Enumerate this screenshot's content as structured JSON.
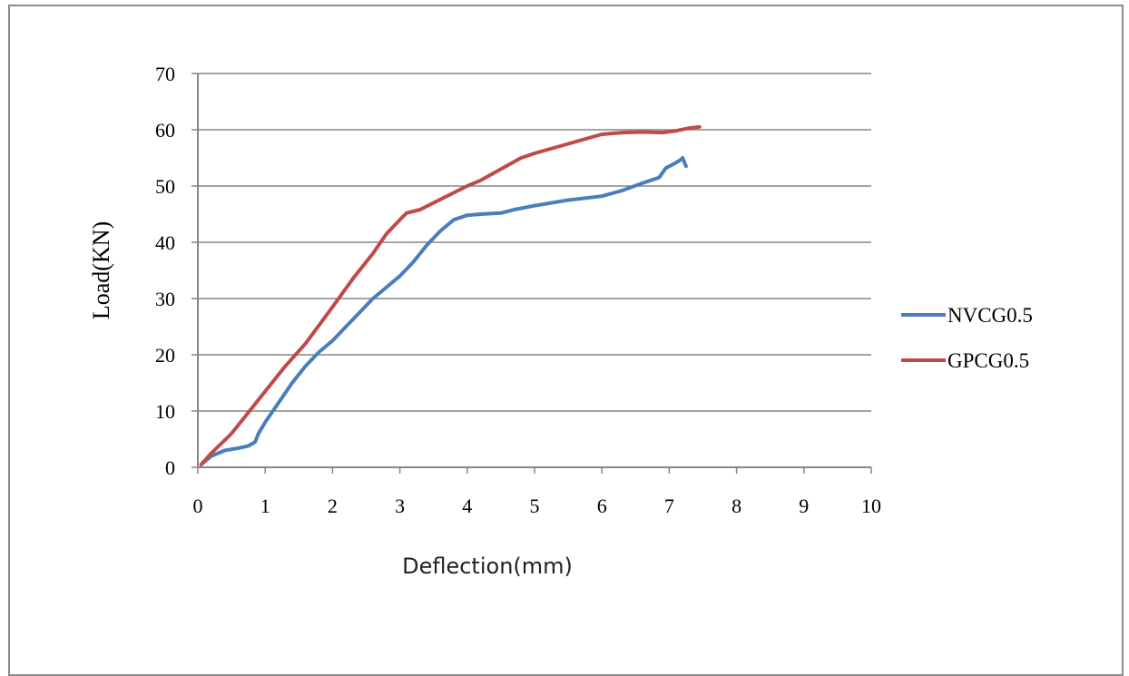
{
  "chart_data": {
    "type": "line",
    "title": "",
    "xlabel": "Deflection(mm)",
    "ylabel": "Load(KN)",
    "xlim": [
      0,
      10
    ],
    "ylim": [
      0,
      70
    ],
    "xticks": [
      "0",
      "1",
      "2",
      "3",
      "4",
      "5",
      "6",
      "7",
      "8",
      "9",
      "10"
    ],
    "yticks": [
      "0",
      "10",
      "20",
      "30",
      "40",
      "50",
      "60",
      "70"
    ],
    "grid": "horizontal",
    "legend_position": "right",
    "series": [
      {
        "name": "NVCG0.5",
        "color": "#4a7ebb",
        "x": [
          0.05,
          0.2,
          0.4,
          0.6,
          0.75,
          0.85,
          0.9,
          1.0,
          1.2,
          1.4,
          1.6,
          1.8,
          2.0,
          2.2,
          2.4,
          2.6,
          2.8,
          3.0,
          3.2,
          3.4,
          3.6,
          3.8,
          4.0,
          4.2,
          4.5,
          4.7,
          5.0,
          5.5,
          6.0,
          6.3,
          6.6,
          6.85,
          6.95,
          7.05,
          7.15,
          7.2,
          7.25
        ],
        "y": [
          0.5,
          2.0,
          3.0,
          3.4,
          3.8,
          4.5,
          6.0,
          8.0,
          11.5,
          15.0,
          18.0,
          20.5,
          22.5,
          25.0,
          27.5,
          30.0,
          32.0,
          34.0,
          36.5,
          39.5,
          42.0,
          44.0,
          44.8,
          45.0,
          45.2,
          45.8,
          46.5,
          47.5,
          48.2,
          49.2,
          50.5,
          51.5,
          53.2,
          53.8,
          54.5,
          55.0,
          53.5
        ]
      },
      {
        "name": "GPCG0.5",
        "color": "#be4b48",
        "x": [
          0.05,
          0.2,
          0.5,
          0.8,
          1.0,
          1.3,
          1.6,
          2.0,
          2.3,
          2.6,
          2.8,
          3.0,
          3.1,
          3.3,
          3.5,
          3.8,
          4.0,
          4.2,
          4.5,
          4.8,
          5.0,
          5.5,
          6.0,
          6.3,
          6.6,
          6.9,
          7.1,
          7.3,
          7.45
        ],
        "y": [
          0.5,
          2.5,
          6.0,
          10.5,
          13.5,
          18.0,
          22.0,
          28.5,
          33.5,
          38.0,
          41.5,
          44.0,
          45.2,
          45.8,
          47.0,
          48.8,
          50.0,
          51.0,
          53.0,
          55.0,
          55.8,
          57.5,
          59.2,
          59.5,
          59.6,
          59.5,
          59.8,
          60.3,
          60.5
        ]
      }
    ]
  }
}
